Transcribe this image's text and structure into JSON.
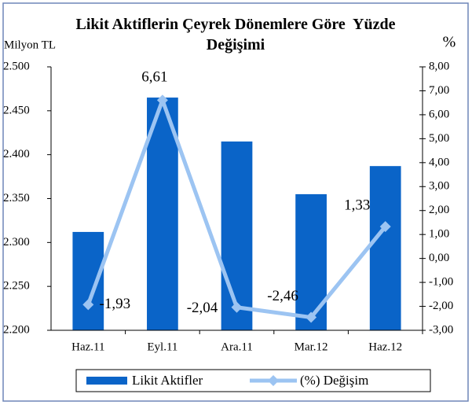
{
  "chart_data": {
    "type": "bar",
    "title": "Likit Aktiflerin Çeyrek Dönemlere Göre  Yüzde Değişimi",
    "y_label": "Milyon TL",
    "y2_label": "%",
    "categories": [
      "Haz.11",
      "Eyl.11",
      "Ara.11",
      "Mar.12",
      "Haz.12"
    ],
    "series": [
      {
        "name": "Likit Aktifler",
        "type": "bar",
        "color": "#0a64c8",
        "values": [
          2312,
          2465,
          2415,
          2355,
          2387
        ]
      },
      {
        "name": "(%) Değişim",
        "type": "line",
        "axis": "y2",
        "color": "#9cc4f2",
        "values": [
          -1.93,
          6.61,
          -2.04,
          -2.46,
          1.33
        ],
        "value_labels": [
          "-1,93",
          "6,61",
          "-2,04",
          "-2,46",
          "1,33"
        ]
      }
    ],
    "ylim": [
      2200,
      2500
    ],
    "yticks": [
      {
        "value": 2200,
        "label": "2.200"
      },
      {
        "value": 2250,
        "label": "2.250"
      },
      {
        "value": 2300,
        "label": "2.300"
      },
      {
        "value": 2350,
        "label": "2.350"
      },
      {
        "value": 2400,
        "label": "2.400"
      },
      {
        "value": 2450,
        "label": "2.450"
      },
      {
        "value": 2500,
        "label": "2.500"
      }
    ],
    "y2lim": [
      -3,
      8
    ],
    "y2ticks": [
      {
        "value": -3,
        "label": "-3,00"
      },
      {
        "value": -2,
        "label": "-2,00"
      },
      {
        "value": -1,
        "label": "-1,00"
      },
      {
        "value": 0,
        "label": "0,00"
      },
      {
        "value": 1,
        "label": "1,00"
      },
      {
        "value": 2,
        "label": "2,00"
      },
      {
        "value": 3,
        "label": "3,00"
      },
      {
        "value": 4,
        "label": "4,00"
      },
      {
        "value": 5,
        "label": "5,00"
      },
      {
        "value": 6,
        "label": "6,00"
      },
      {
        "value": 7,
        "label": "7,00"
      },
      {
        "value": 8,
        "label": "8,00"
      }
    ],
    "grid": false,
    "legend": "bottom"
  }
}
